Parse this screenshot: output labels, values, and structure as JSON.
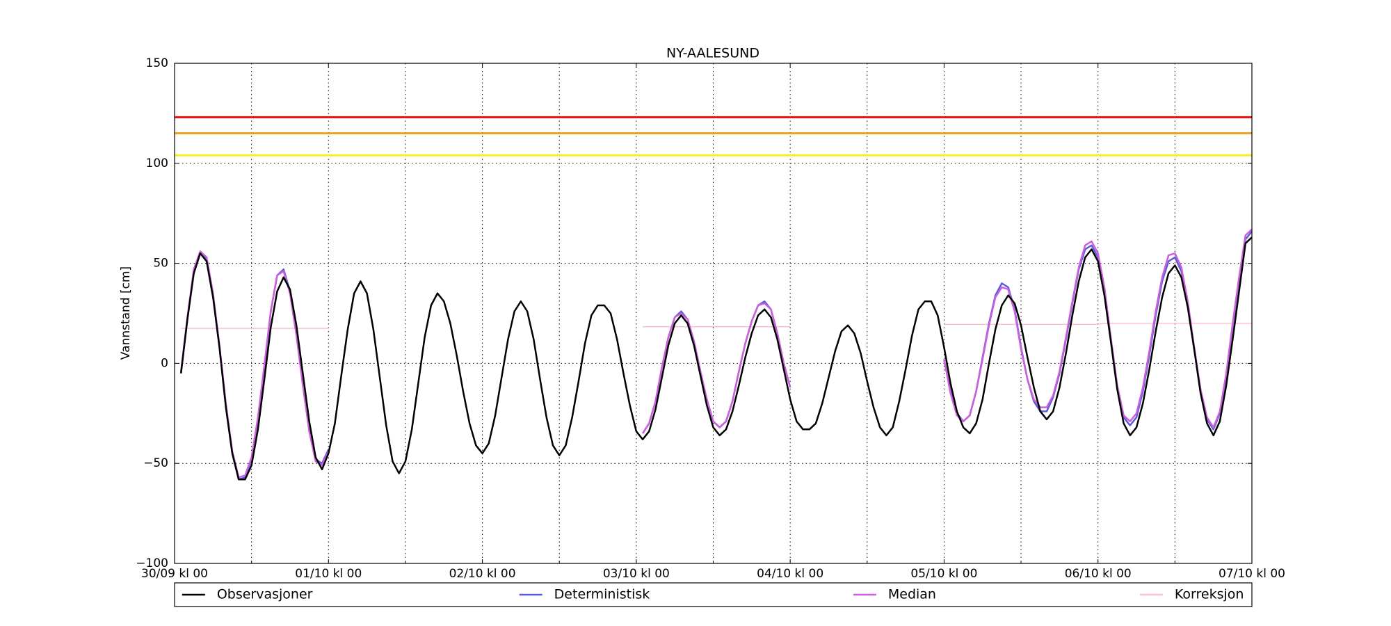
{
  "chart_data": {
    "type": "line",
    "title": "NY-AALESUND",
    "ylabel": "Vannstand [cm]",
    "xlim": [
      "30/09 kl 00",
      "07/10 kl 00"
    ],
    "xticks": [
      "30/09 kl 00",
      "01/10 kl 00",
      "02/10 kl 00",
      "03/10 kl 00",
      "04/10 kl 00",
      "05/10 kl 00",
      "06/10 kl 00",
      "07/10 kl 00"
    ],
    "xminorticks": [
      "30/09 kl 12",
      "01/10 kl 12",
      "02/10 kl 12",
      "03/10 kl 12",
      "04/10 kl 12",
      "05/10 kl 12",
      "06/10 kl 12"
    ],
    "ylim": [
      -100,
      150
    ],
    "yticks": [
      {
        "value": -100,
        "label": "−100"
      },
      {
        "value": -50,
        "label": "−50"
      },
      0,
      50,
      100,
      150
    ],
    "grid": true,
    "legend": "bottom",
    "reference_lines": [
      {
        "value": 123,
        "color": "#ee1111"
      },
      {
        "value": 115,
        "color": "#f0a020"
      },
      {
        "value": 104,
        "color": "#f5f020"
      }
    ],
    "x": [
      "30/09 kl 01",
      "30/09 kl 02",
      "30/09 kl 03",
      "30/09 kl 04",
      "30/09 kl 05",
      "30/09 kl 06",
      "30/09 kl 07",
      "30/09 kl 08",
      "30/09 kl 09",
      "30/09 kl 10",
      "30/09 kl 11",
      "30/09 kl 12",
      "30/09 kl 13",
      "30/09 kl 14",
      "30/09 kl 15",
      "30/09 kl 16",
      "30/09 kl 17",
      "30/09 kl 18",
      "30/09 kl 19",
      "30/09 kl 20",
      "30/09 kl 21",
      "30/09 kl 22",
      "30/09 kl 23",
      "01/10 kl 00",
      "01/10 kl 01",
      "01/10 kl 02",
      "01/10 kl 03",
      "01/10 kl 04",
      "01/10 kl 05",
      "01/10 kl 06",
      "01/10 kl 07",
      "01/10 kl 08",
      "01/10 kl 09",
      "01/10 kl 10",
      "01/10 kl 11",
      "01/10 kl 12",
      "01/10 kl 13",
      "01/10 kl 14",
      "01/10 kl 15",
      "01/10 kl 16",
      "01/10 kl 17",
      "01/10 kl 18",
      "01/10 kl 19",
      "01/10 kl 20",
      "01/10 kl 21",
      "01/10 kl 22",
      "01/10 kl 23",
      "02/10 kl 00",
      "02/10 kl 01",
      "02/10 kl 02",
      "02/10 kl 03",
      "02/10 kl 04",
      "02/10 kl 05",
      "02/10 kl 06",
      "02/10 kl 07",
      "02/10 kl 08",
      "02/10 kl 09",
      "02/10 kl 10",
      "02/10 kl 11",
      "02/10 kl 12",
      "02/10 kl 13",
      "02/10 kl 14",
      "02/10 kl 15",
      "02/10 kl 16",
      "02/10 kl 17",
      "02/10 kl 18",
      "02/10 kl 19",
      "02/10 kl 20",
      "02/10 kl 21",
      "02/10 kl 22",
      "02/10 kl 23",
      "03/10 kl 00",
      "03/10 kl 01",
      "03/10 kl 02",
      "03/10 kl 03",
      "03/10 kl 04",
      "03/10 kl 05",
      "03/10 kl 06",
      "03/10 kl 07",
      "03/10 kl 08",
      "03/10 kl 09",
      "03/10 kl 10",
      "03/10 kl 11",
      "03/10 kl 12",
      "03/10 kl 13",
      "03/10 kl 14",
      "03/10 kl 15",
      "03/10 kl 16",
      "03/10 kl 17",
      "03/10 kl 18",
      "03/10 kl 19",
      "03/10 kl 20",
      "03/10 kl 21",
      "03/10 kl 22",
      "03/10 kl 23",
      "04/10 kl 00",
      "04/10 kl 01",
      "04/10 kl 02",
      "04/10 kl 03",
      "04/10 kl 04",
      "04/10 kl 05",
      "04/10 kl 06",
      "04/10 kl 07",
      "04/10 kl 08",
      "04/10 kl 09",
      "04/10 kl 10",
      "04/10 kl 11",
      "04/10 kl 12",
      "04/10 kl 13",
      "04/10 kl 14",
      "04/10 kl 15",
      "04/10 kl 16",
      "04/10 kl 17",
      "04/10 kl 18",
      "04/10 kl 19",
      "04/10 kl 20",
      "04/10 kl 21",
      "04/10 kl 22",
      "04/10 kl 23",
      "05/10 kl 00",
      "05/10 kl 01",
      "05/10 kl 02",
      "05/10 kl 03",
      "05/10 kl 04",
      "05/10 kl 05",
      "05/10 kl 06",
      "05/10 kl 07",
      "05/10 kl 08",
      "05/10 kl 09",
      "05/10 kl 10",
      "05/10 kl 11",
      "05/10 kl 12",
      "05/10 kl 13",
      "05/10 kl 14",
      "05/10 kl 15",
      "05/10 kl 16",
      "05/10 kl 17",
      "05/10 kl 18",
      "05/10 kl 19",
      "05/10 kl 20",
      "05/10 kl 21",
      "05/10 kl 22",
      "05/10 kl 23",
      "06/10 kl 00",
      "06/10 kl 01",
      "06/10 kl 02",
      "06/10 kl 03",
      "06/10 kl 04",
      "06/10 kl 05",
      "06/10 kl 06",
      "06/10 kl 07",
      "06/10 kl 08",
      "06/10 kl 09",
      "06/10 kl 10",
      "06/10 kl 11",
      "06/10 kl 12",
      "06/10 kl 13",
      "06/10 kl 14",
      "06/10 kl 15",
      "06/10 kl 16",
      "06/10 kl 17",
      "06/10 kl 18",
      "06/10 kl 19",
      "06/10 kl 20",
      "06/10 kl 21",
      "06/10 kl 22",
      "06/10 kl 23",
      "07/10 kl 00"
    ],
    "series": [
      {
        "name": "Observasjoner",
        "color": "#000000",
        "values": [
          -5,
          22,
          45,
          55,
          51,
          33,
          8,
          -22,
          -45,
          -58,
          -58,
          -51,
          -33,
          -8,
          18,
          36,
          43,
          37,
          19,
          -5,
          -29,
          -47,
          -53,
          -45,
          -30,
          -6,
          17,
          35,
          41,
          35,
          17,
          -7,
          -31,
          -49,
          -55,
          -49,
          -33,
          -10,
          13,
          29,
          35,
          31,
          20,
          4,
          -14,
          -30,
          -41,
          -45,
          -40,
          -26,
          -7,
          12,
          26,
          31,
          26,
          12,
          -8,
          -27,
          -41,
          -46,
          -41,
          -27,
          -9,
          10,
          24,
          29,
          29,
          25,
          12,
          -5,
          -21,
          -34,
          -38,
          -34,
          -23,
          -7,
          9,
          20,
          24,
          20,
          9,
          -6,
          -21,
          -32,
          -36,
          -33,
          -24,
          -11,
          3,
          15,
          24,
          27,
          23,
          12,
          -3,
          -18,
          -29,
          -33,
          -33,
          -30,
          -20,
          -7,
          6,
          16,
          19,
          15,
          5,
          -9,
          -22,
          -32,
          -36,
          -32,
          -19,
          -3,
          14,
          27,
          31,
          31,
          24,
          8,
          -10,
          -24,
          -32,
          -35,
          -30,
          -18,
          0,
          17,
          29,
          34,
          30,
          19,
          3,
          -12,
          -24,
          -28,
          -24,
          -12,
          5,
          24,
          41,
          53,
          57,
          51,
          34,
          11,
          -13,
          -30,
          -36,
          -32,
          -20,
          -3,
          16,
          33,
          45,
          49,
          43,
          28,
          7,
          -15,
          -30,
          -36,
          -29,
          -11,
          12,
          36,
          60,
          63
        ]
      },
      {
        "name": "Deterministisk",
        "color": "#5b5bdc",
        "values": [
          -5,
          22,
          46,
          55,
          52,
          34,
          8,
          -21,
          -45,
          -58,
          -57,
          -48,
          -28,
          -2,
          26,
          44,
          47,
          36,
          15,
          -10,
          -33,
          -48,
          -50,
          -43,
          null,
          null,
          null,
          null,
          null,
          null,
          null,
          null,
          null,
          null,
          null,
          null,
          null,
          null,
          null,
          null,
          null,
          null,
          null,
          null,
          null,
          null,
          null,
          null,
          null,
          null,
          null,
          null,
          null,
          null,
          null,
          null,
          null,
          null,
          null,
          null,
          null,
          null,
          null,
          null,
          null,
          null,
          null,
          null,
          null,
          null,
          null,
          null,
          -35,
          -30,
          -19,
          -2,
          13,
          23,
          26,
          22,
          11,
          -4,
          -18,
          -29,
          -32,
          -29,
          -19,
          -4,
          10,
          21,
          29,
          31,
          27,
          15,
          0,
          -12,
          null,
          null,
          null,
          null,
          null,
          null,
          null,
          null,
          null,
          null,
          null,
          null,
          null,
          null,
          null,
          null,
          null,
          null,
          null,
          null,
          null,
          null,
          null,
          2,
          -14,
          -25,
          -29,
          -26,
          -14,
          3,
          20,
          34,
          40,
          38,
          27,
          8,
          -8,
          -19,
          -24,
          -24,
          -17,
          -5,
          12,
          30,
          47,
          57,
          59,
          53,
          36,
          12,
          -12,
          -27,
          -31,
          -27,
          -14,
          4,
          24,
          41,
          51,
          53,
          46,
          30,
          8,
          -14,
          -28,
          -33,
          -25,
          -6,
          19,
          42,
          62,
          66
        ]
      },
      {
        "name": "Median",
        "color": "#cc5fdc",
        "values": [
          -4,
          23,
          47,
          56,
          53,
          35,
          9,
          -20,
          -44,
          -57,
          -56,
          -47,
          -27,
          -1,
          26,
          44,
          46,
          35,
          14,
          -11,
          -34,
          -49,
          -51,
          -44,
          null,
          null,
          null,
          null,
          null,
          null,
          null,
          null,
          null,
          null,
          null,
          null,
          null,
          null,
          null,
          null,
          null,
          null,
          null,
          null,
          null,
          null,
          null,
          null,
          null,
          null,
          null,
          null,
          null,
          null,
          null,
          null,
          null,
          null,
          null,
          null,
          null,
          null,
          null,
          null,
          null,
          null,
          null,
          null,
          null,
          null,
          null,
          null,
          -35,
          -30,
          -19,
          -2,
          13,
          23,
          25,
          22,
          11,
          -4,
          -18,
          -29,
          -32,
          -29,
          -19,
          -4,
          10,
          21,
          29,
          30,
          27,
          15,
          0,
          -12,
          null,
          null,
          null,
          null,
          null,
          null,
          null,
          null,
          null,
          null,
          null,
          null,
          null,
          null,
          null,
          null,
          null,
          null,
          null,
          null,
          null,
          null,
          null,
          2,
          -15,
          -26,
          -29,
          -26,
          -14,
          2,
          19,
          33,
          38,
          37,
          26,
          7,
          -8,
          -18,
          -22,
          -22,
          -16,
          -4,
          13,
          31,
          48,
          59,
          61,
          55,
          38,
          13,
          -11,
          -26,
          -29,
          -25,
          -12,
          6,
          26,
          43,
          54,
          55,
          48,
          31,
          8,
          -13,
          -27,
          -32,
          -24,
          -5,
          20,
          43,
          64,
          67
        ]
      },
      {
        "name": "Korreksjon",
        "color": "#f7c2cc",
        "values": [
          17.5,
          17.5,
          17.5,
          17.5,
          17.5,
          17.5,
          17.5,
          17.5,
          17.5,
          17.5,
          17.5,
          17.5,
          17.5,
          17.5,
          17.5,
          17.5,
          17.5,
          17.5,
          17.5,
          17.5,
          17.5,
          17.5,
          17.5,
          17.5,
          null,
          null,
          null,
          null,
          null,
          null,
          null,
          null,
          null,
          null,
          null,
          null,
          null,
          null,
          null,
          null,
          null,
          null,
          null,
          null,
          null,
          null,
          null,
          null,
          null,
          null,
          null,
          null,
          null,
          null,
          null,
          null,
          null,
          null,
          null,
          null,
          null,
          null,
          null,
          null,
          null,
          null,
          null,
          null,
          null,
          null,
          null,
          null,
          18.3,
          18.3,
          18.3,
          18.3,
          18.3,
          18.3,
          18.3,
          18.3,
          18.3,
          18.3,
          18.3,
          18.3,
          18.3,
          18.3,
          18.3,
          18.3,
          18.3,
          18.3,
          18.3,
          18.3,
          18.3,
          18.3,
          18.3,
          18.3,
          null,
          null,
          null,
          null,
          null,
          null,
          null,
          null,
          null,
          null,
          null,
          null,
          null,
          null,
          null,
          null,
          null,
          null,
          null,
          null,
          null,
          null,
          null,
          19.5,
          19.5,
          19.5,
          19.5,
          19.5,
          19.5,
          19.5,
          19.5,
          19.5,
          19.5,
          19.5,
          19.5,
          19.5,
          19.5,
          19.5,
          19.5,
          19.5,
          19.5,
          19.5,
          19.5,
          19.5,
          19.5,
          19.5,
          19.5,
          19.5,
          20,
          20,
          20,
          20,
          20,
          20,
          20,
          20,
          20,
          20,
          20,
          20,
          20,
          20,
          20,
          20,
          20,
          20,
          20,
          20,
          20,
          20,
          20,
          20
        ]
      }
    ]
  }
}
